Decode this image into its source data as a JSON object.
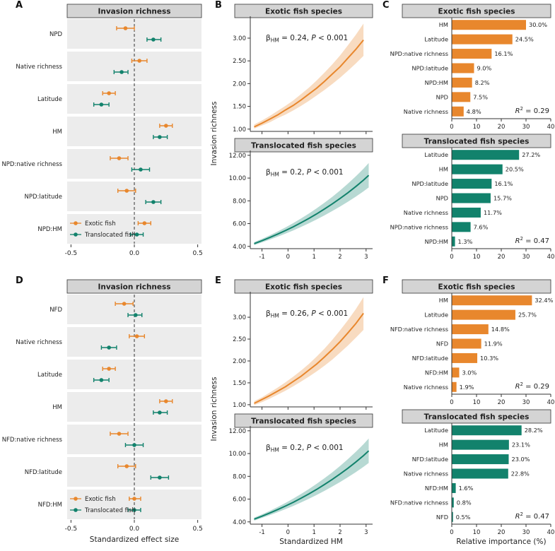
{
  "colors": {
    "exotic": "#E8872D",
    "translocated": "#12826C",
    "strip_bg": "#D4D4D4",
    "strip_border": "#333333",
    "row_bg": "#ECECEC",
    "axis": "#333333"
  },
  "chart_data": [
    {
      "panel": "A",
      "letter": "A",
      "type": "forest",
      "title": "Invasion richness",
      "xlabel": "",
      "xlim": [
        -0.53,
        0.53
      ],
      "xticks": [
        "-0.5",
        "0.0",
        "0.5"
      ],
      "xtick_vals": [
        -0.5,
        0,
        0.5
      ],
      "categories": [
        "NPD",
        "Native richness",
        "Latitude",
        "HM",
        "NPD:native richness",
        "NPD:latitude",
        "NPD:HM"
      ],
      "series": [
        {
          "name": "Exotic fish",
          "color": "exotic",
          "est": [
            -0.07,
            0.04,
            -0.2,
            0.25,
            -0.12,
            -0.06,
            0.08
          ],
          "lo": [
            -0.14,
            -0.02,
            -0.25,
            0.2,
            -0.19,
            -0.13,
            0.03
          ],
          "hi": [
            0.0,
            0.1,
            -0.15,
            0.3,
            -0.05,
            0.01,
            0.13
          ]
        },
        {
          "name": "Translocated fish",
          "color": "translocated",
          "est": [
            0.15,
            -0.1,
            -0.26,
            0.2,
            0.05,
            0.15,
            0.02
          ],
          "lo": [
            0.1,
            -0.16,
            -0.32,
            0.15,
            -0.02,
            0.09,
            -0.03
          ],
          "hi": [
            0.21,
            -0.05,
            -0.2,
            0.26,
            0.12,
            0.21,
            0.07
          ]
        }
      ],
      "legend": [
        "Exotic fish",
        "Translocated fish"
      ]
    },
    {
      "panel": "B",
      "letter": "B",
      "type": "lines",
      "ylabel": "Invasion richness",
      "xlabel": "",
      "charts": [
        {
          "title": "Exotic fish species",
          "color": "exotic",
          "show_xlabels": false,
          "annotation": {
            "symbol": "β",
            "subscript": "HM",
            "value": "0.24",
            "p_prefix": "P",
            "p_rest": " < 0.001"
          },
          "xlim": [
            -1.45,
            3.25
          ],
          "ylim": [
            0.95,
            3.45
          ],
          "yticks": [
            "1.00",
            "1.50",
            "2.00",
            "2.50",
            "3.00"
          ],
          "ytick_vals": [
            1,
            1.5,
            2,
            2.5,
            3
          ],
          "xticks": [
            "-1",
            "0",
            "1",
            "2",
            "3"
          ],
          "xtick_vals": [
            -1,
            0,
            1,
            2,
            3
          ],
          "x": [
            -1.3,
            -1,
            -0.7,
            -0.4,
            -0.1,
            0.2,
            0.5,
            0.8,
            1.1,
            1.4,
            1.7,
            2,
            2.3,
            2.6,
            2.9
          ],
          "y": [
            1.05,
            1.13,
            1.22,
            1.31,
            1.42,
            1.52,
            1.64,
            1.77,
            1.9,
            2.05,
            2.21,
            2.37,
            2.56,
            2.75,
            2.96
          ],
          "lo": [
            1.01,
            1.08,
            1.15,
            1.24,
            1.32,
            1.41,
            1.51,
            1.62,
            1.74,
            1.86,
            1.99,
            2.13,
            2.28,
            2.44,
            2.61
          ],
          "hi": [
            1.1,
            1.19,
            1.29,
            1.4,
            1.51,
            1.63,
            1.77,
            1.91,
            2.07,
            2.24,
            2.42,
            2.62,
            2.84,
            3.07,
            3.32
          ]
        },
        {
          "title": "Translocated fish species",
          "color": "translocated",
          "show_xlabels": true,
          "annotation": {
            "symbol": "β",
            "subscript": "HM",
            "value": "0.2",
            "p_prefix": "P",
            "p_rest": " < 0.001"
          },
          "xlim": [
            -1.45,
            3.25
          ],
          "ylim": [
            3.8,
            12.3
          ],
          "yticks": [
            "4.00",
            "6.00",
            "8.00",
            "10.00",
            "12.00"
          ],
          "ytick_vals": [
            4,
            6,
            8,
            10,
            12
          ],
          "xticks": [
            "-1",
            "0",
            "1",
            "2",
            "3"
          ],
          "xtick_vals": [
            -1,
            0,
            1,
            2,
            3
          ],
          "x": [
            -1.3,
            -1,
            -0.7,
            -0.4,
            -0.1,
            0.2,
            0.5,
            0.8,
            1.1,
            1.4,
            1.7,
            2,
            2.3,
            2.6,
            2.9,
            3.1
          ],
          "y": [
            4.24,
            4.5,
            4.78,
            5.08,
            5.39,
            5.72,
            6.08,
            6.45,
            6.85,
            7.28,
            7.73,
            8.21,
            8.71,
            9.25,
            9.82,
            10.24
          ],
          "lo": [
            4.11,
            4.35,
            4.59,
            4.85,
            5.12,
            5.4,
            5.71,
            6.03,
            6.37,
            6.72,
            7.1,
            7.5,
            7.92,
            8.36,
            8.83,
            9.17
          ],
          "hi": [
            4.37,
            4.66,
            4.97,
            5.31,
            5.66,
            6.04,
            6.45,
            6.88,
            7.34,
            7.83,
            8.35,
            8.91,
            9.51,
            10.14,
            10.82,
            11.32
          ]
        }
      ]
    },
    {
      "panel": "C",
      "letter": "C",
      "type": "bars",
      "xlabel": "",
      "charts": [
        {
          "title": "Exotic fish species",
          "color": "exotic",
          "r2": "0.29",
          "xlim": [
            0,
            40
          ],
          "xticks": [
            0,
            10,
            20,
            30,
            40
          ],
          "categories": [
            "HM",
            "Latitude",
            "NPD:native richness",
            "NPD:latitude",
            "NPD:HM",
            "NPD",
            "Native richness"
          ],
          "values": [
            30.0,
            24.5,
            16.1,
            9.0,
            8.2,
            7.5,
            4.8
          ],
          "labels": [
            "30.0%",
            "24.5%",
            "16.1%",
            "9.0%",
            "8.2%",
            "7.5%",
            "4.8%"
          ]
        },
        {
          "title": "Translocated fish species",
          "color": "translocated",
          "r2": "0.47",
          "xlim": [
            0,
            40
          ],
          "xticks": [
            0,
            10,
            20,
            30,
            40
          ],
          "categories": [
            "Latitude",
            "HM",
            "NPD:latitude",
            "NPD",
            "Native richness",
            "NPD:native richness",
            "NPD:HM"
          ],
          "values": [
            27.2,
            20.5,
            16.1,
            15.7,
            11.7,
            7.6,
            1.3
          ],
          "labels": [
            "27.2%",
            "20.5%",
            "16.1%",
            "15.7%",
            "11.7%",
            "7.6%",
            "1.3%"
          ]
        }
      ]
    },
    {
      "panel": "D",
      "letter": "D",
      "type": "forest",
      "title": "Invasion richness",
      "xlabel": "Standardized effect size",
      "xlim": [
        -0.53,
        0.53
      ],
      "xticks": [
        "-0.5",
        "0.0",
        "0.5"
      ],
      "xtick_vals": [
        -0.5,
        0,
        0.5
      ],
      "categories": [
        "NFD",
        "Native richness",
        "Latitude",
        "HM",
        "NFD:native richness",
        "NFD:latitude",
        "NFD:HM"
      ],
      "series": [
        {
          "name": "Exotic fish",
          "color": "exotic",
          "est": [
            -0.08,
            0.02,
            -0.2,
            0.25,
            -0.12,
            -0.06,
            0.0
          ],
          "lo": [
            -0.15,
            -0.04,
            -0.25,
            0.2,
            -0.19,
            -0.13,
            -0.04
          ],
          "hi": [
            -0.01,
            0.08,
            -0.15,
            0.3,
            -0.05,
            0.01,
            0.05
          ]
        },
        {
          "name": "Translocated fish",
          "color": "translocated",
          "est": [
            0.01,
            -0.2,
            -0.26,
            0.2,
            0.0,
            0.2,
            0.0
          ],
          "lo": [
            -0.05,
            -0.26,
            -0.32,
            0.15,
            -0.07,
            0.13,
            -0.05
          ],
          "hi": [
            0.06,
            -0.14,
            -0.2,
            0.26,
            0.07,
            0.27,
            0.05
          ]
        }
      ],
      "legend": [
        "Exotic fish",
        "Translocated fish"
      ]
    },
    {
      "panel": "E",
      "letter": "E",
      "type": "lines",
      "ylabel": "Invasion richness",
      "xlabel": "Standardized HM",
      "charts": [
        {
          "title": "Exotic fish species",
          "color": "exotic",
          "show_xlabels": false,
          "annotation": {
            "symbol": "β",
            "subscript": "HM",
            "value": "0.26",
            "p_prefix": "P",
            "p_rest": " < 0.001"
          },
          "xlim": [
            -1.45,
            3.25
          ],
          "ylim": [
            0.95,
            3.55
          ],
          "yticks": [
            "1.00",
            "1.50",
            "2.00",
            "2.50",
            "3.00"
          ],
          "ytick_vals": [
            1,
            1.5,
            2,
            2.5,
            3
          ],
          "xticks": [
            "-1",
            "0",
            "1",
            "2",
            "3"
          ],
          "xtick_vals": [
            -1,
            0,
            1,
            2,
            3
          ],
          "x": [
            -1.3,
            -1,
            -0.7,
            -0.4,
            -0.1,
            0.2,
            0.5,
            0.8,
            1.1,
            1.4,
            1.7,
            2,
            2.3,
            2.6,
            2.9
          ],
          "y": [
            1.03,
            1.12,
            1.21,
            1.31,
            1.41,
            1.53,
            1.65,
            1.79,
            1.93,
            2.09,
            2.26,
            2.44,
            2.64,
            2.85,
            3.09
          ],
          "lo": [
            0.99,
            1.06,
            1.14,
            1.23,
            1.32,
            1.42,
            1.53,
            1.64,
            1.76,
            1.89,
            2.03,
            2.19,
            2.35,
            2.53,
            2.71
          ],
          "hi": [
            1.08,
            1.17,
            1.28,
            1.39,
            1.51,
            1.64,
            1.78,
            1.93,
            2.1,
            2.28,
            2.48,
            2.7,
            2.93,
            3.18,
            3.46
          ]
        },
        {
          "title": "Translocated fish species",
          "color": "translocated",
          "show_xlabels": true,
          "annotation": {
            "symbol": "β",
            "subscript": "HM",
            "value": "0.2",
            "p_prefix": "P",
            "p_rest": " < 0.001"
          },
          "xlim": [
            -1.45,
            3.25
          ],
          "ylim": [
            3.8,
            12.3
          ],
          "yticks": [
            "4.00",
            "6.00",
            "8.00",
            "10.00",
            "12.00"
          ],
          "ytick_vals": [
            4,
            6,
            8,
            10,
            12
          ],
          "xticks": [
            "-1",
            "0",
            "1",
            "2",
            "3"
          ],
          "xtick_vals": [
            -1,
            0,
            1,
            2,
            3
          ],
          "x": [
            -1.3,
            -1,
            -0.7,
            -0.4,
            -0.1,
            0.2,
            0.5,
            0.8,
            1.1,
            1.4,
            1.7,
            2,
            2.3,
            2.6,
            2.9,
            3.1
          ],
          "y": [
            4.24,
            4.5,
            4.78,
            5.08,
            5.39,
            5.72,
            6.08,
            6.45,
            6.85,
            7.28,
            7.73,
            8.21,
            8.71,
            9.25,
            9.82,
            10.24
          ],
          "lo": [
            4.11,
            4.35,
            4.59,
            4.85,
            5.12,
            5.4,
            5.71,
            6.03,
            6.37,
            6.72,
            7.1,
            7.5,
            7.92,
            8.36,
            8.83,
            9.17
          ],
          "hi": [
            4.37,
            4.66,
            4.97,
            5.31,
            5.66,
            6.04,
            6.45,
            6.88,
            7.34,
            7.83,
            8.35,
            8.91,
            9.51,
            10.14,
            10.82,
            11.32
          ]
        }
      ]
    },
    {
      "panel": "F",
      "letter": "F",
      "type": "bars",
      "xlabel": "Relative importance (%)",
      "charts": [
        {
          "title": "Exotic fish species",
          "color": "exotic",
          "r2": "0.29",
          "xlim": [
            0,
            40
          ],
          "xticks": [
            0,
            10,
            20,
            30,
            40
          ],
          "categories": [
            "HM",
            "Latitude",
            "NFD:native richness",
            "NFD",
            "NFD:latitude",
            "NFD:HM",
            "Native richness"
          ],
          "values": [
            32.4,
            25.7,
            14.8,
            11.9,
            10.3,
            3.0,
            1.9
          ],
          "labels": [
            "32.4%",
            "25.7%",
            "14.8%",
            "11.9%",
            "10.3%",
            "3.0%",
            "1.9%"
          ]
        },
        {
          "title": "Translocated fish species",
          "color": "translocated",
          "r2": "0.47",
          "xlim": [
            0,
            40
          ],
          "xticks": [
            0,
            10,
            20,
            30,
            40
          ],
          "categories": [
            "Latitude",
            "HM",
            "NFD:latitude",
            "Native richness",
            "NFD:HM",
            "NFD:native richness",
            "NFD"
          ],
          "values": [
            28.2,
            23.1,
            23.0,
            22.8,
            1.6,
            0.8,
            0.5
          ],
          "labels": [
            "28.2%",
            "23.1%",
            "23.0%",
            "22.8%",
            "1.6%",
            "0.8%",
            "0.5%"
          ]
        }
      ]
    }
  ]
}
